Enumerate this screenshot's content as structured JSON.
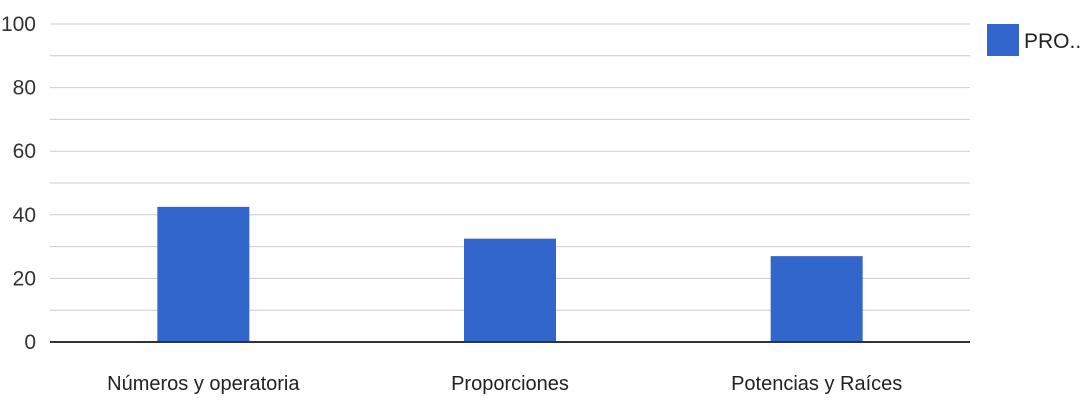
{
  "chart_data": {
    "type": "bar",
    "title": "",
    "xlabel": "",
    "ylabel": "",
    "categories": [
      "Números y operatoria",
      "Proporciones",
      "Potencias y Raíces"
    ],
    "series": [
      {
        "name": "PRO...",
        "color": "#3366cc",
        "values": [
          42.5,
          32.5,
          27
        ]
      }
    ],
    "ylim": [
      0,
      100
    ],
    "yticks": [
      "0",
      "20",
      "40",
      "60",
      "80",
      "100"
    ],
    "grid": true,
    "legend_position": "right"
  }
}
